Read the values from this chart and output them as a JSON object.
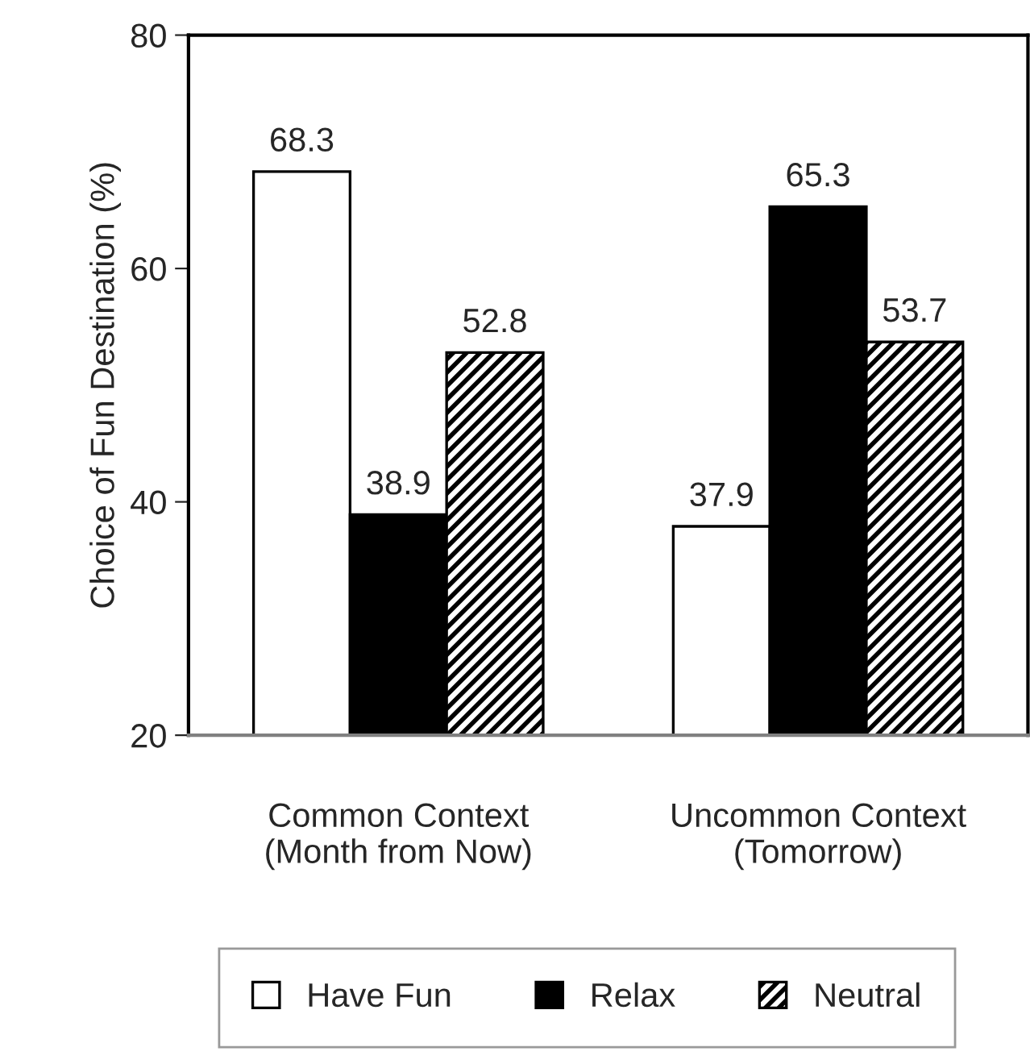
{
  "chart_data": {
    "type": "bar",
    "ylabel": "Choice of Fun Destination (%)",
    "categories": [
      "Common Context\n(Month from Now)",
      "Uncommon Context\n(Tomorrow)"
    ],
    "series": [
      {
        "name": "Have Fun",
        "color": "#ffffff",
        "values": [
          68.3,
          37.9
        ]
      },
      {
        "name": "Relax",
        "color": "#000000",
        "values": [
          38.9,
          65.3
        ]
      },
      {
        "name": "Neutral",
        "color": "#000000",
        "values": [
          52.8,
          53.7
        ]
      }
    ],
    "ylim": [
      20,
      80
    ],
    "yticks": [
      20,
      40,
      60,
      80
    ],
    "grid": false,
    "legend": "bottom",
    "data_labels": true
  }
}
